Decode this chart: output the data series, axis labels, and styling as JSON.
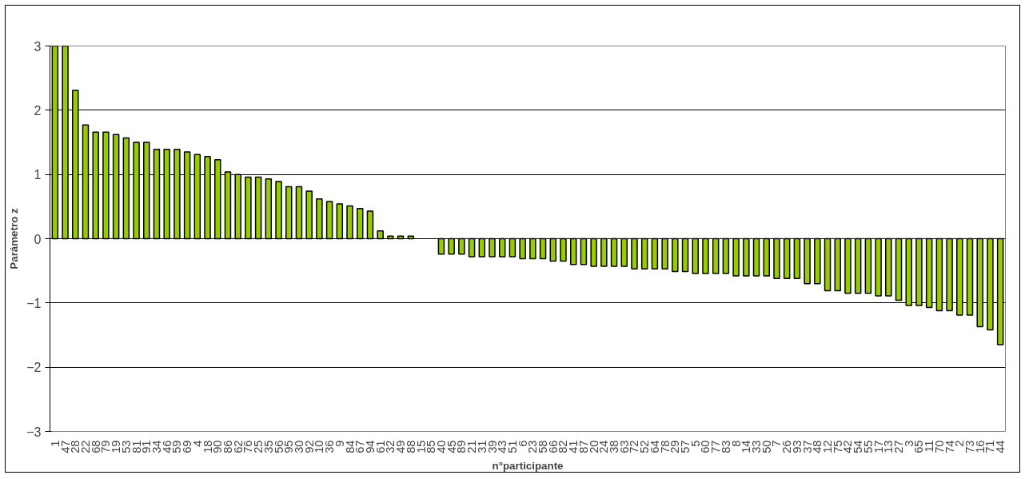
{
  "chart_data": {
    "type": "bar",
    "xlabel": "n°participante",
    "ylabel": "Parámetro z",
    "categories": [
      "1",
      "47",
      "28",
      "22",
      "68",
      "79",
      "19",
      "53",
      "81",
      "91",
      "34",
      "46",
      "59",
      "69",
      "4",
      "18",
      "90",
      "86",
      "62",
      "76",
      "25",
      "35",
      "56",
      "95",
      "30",
      "92",
      "10",
      "36",
      "9",
      "84",
      "67",
      "94",
      "61",
      "32",
      "49",
      "88",
      "15",
      "85",
      "40",
      "45",
      "89",
      "21",
      "31",
      "39",
      "43",
      "51",
      "6",
      "23",
      "58",
      "66",
      "82",
      "41",
      "87",
      "20",
      "24",
      "38",
      "63",
      "72",
      "52",
      "64",
      "78",
      "29",
      "57",
      "5",
      "60",
      "77",
      "83",
      "8",
      "14",
      "33",
      "50",
      "7",
      "26",
      "93",
      "37",
      "48",
      "12",
      "75",
      "42",
      "54",
      "55",
      "17",
      "13",
      "27",
      "3",
      "65",
      "11",
      "70",
      "74",
      "2",
      "73",
      "16",
      "71",
      "44"
    ],
    "values": [
      3,
      3,
      2.31,
      1.77,
      1.66,
      1.66,
      1.62,
      1.57,
      1.5,
      1.5,
      1.39,
      1.39,
      1.39,
      1.35,
      1.31,
      1.28,
      1.23,
      1.04,
      1.0,
      0.96,
      0.96,
      0.93,
      0.89,
      0.81,
      0.81,
      0.74,
      0.62,
      0.58,
      0.54,
      0.51,
      0.47,
      0.43,
      0.12,
      0.04,
      0.04,
      0.04,
      null,
      null,
      -0.24,
      -0.24,
      -0.24,
      -0.28,
      -0.28,
      -0.28,
      -0.28,
      -0.28,
      -0.31,
      -0.31,
      -0.31,
      -0.35,
      -0.35,
      -0.4,
      -0.4,
      -0.43,
      -0.43,
      -0.43,
      -0.43,
      -0.47,
      -0.47,
      -0.47,
      -0.47,
      -0.51,
      -0.51,
      -0.54,
      -0.54,
      -0.54,
      -0.54,
      -0.58,
      -0.58,
      -0.58,
      -0.58,
      -0.62,
      -0.62,
      -0.62,
      -0.7,
      -0.7,
      -0.81,
      -0.81,
      -0.85,
      -0.85,
      -0.85,
      -0.89,
      -0.89,
      -0.96,
      -1.04,
      -1.04,
      -1.07,
      -1.12,
      -1.12,
      -1.19,
      -1.19,
      -1.37,
      -1.42,
      -1.65
    ],
    "color": "#99cc00",
    "ylim": [
      -3,
      3
    ],
    "yticks": [
      -3,
      -2,
      -1,
      0,
      1,
      2,
      3
    ],
    "grid": "y"
  }
}
